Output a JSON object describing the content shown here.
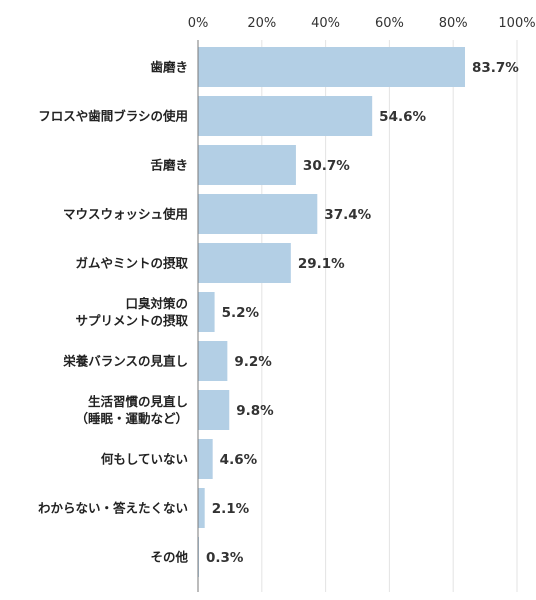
{
  "chart_data": {
    "type": "bar",
    "orientation": "horizontal",
    "x_ticks": [
      "0%",
      "20%",
      "40%",
      "60%",
      "80%",
      "100%"
    ],
    "xlim": [
      0,
      100
    ],
    "categories": [
      [
        "歯磨き"
      ],
      [
        "フロスや歯間ブラシの使用"
      ],
      [
        "舌磨き"
      ],
      [
        "マウスウォッシュ使用"
      ],
      [
        "ガムやミントの摂取"
      ],
      [
        "口臭対策の",
        "サプリメントの摂取"
      ],
      [
        "栄養バランスの見直し"
      ],
      [
        "生活習慣の見直し",
        "（睡眠・運動など）"
      ],
      [
        "何もしていない"
      ],
      [
        "わからない・答えたくない"
      ],
      [
        "その他"
      ]
    ],
    "values": [
      83.7,
      54.6,
      30.7,
      37.4,
      29.1,
      5.2,
      9.2,
      9.8,
      4.6,
      2.1,
      0.3
    ],
    "value_labels": [
      "83.7%",
      "54.6%",
      "30.7%",
      "37.4%",
      "29.1%",
      "5.2%",
      "9.2%",
      "9.8%",
      "4.6%",
      "2.1%",
      "0.3%"
    ],
    "grid": true,
    "colors": {
      "bar": "#b3cfe5",
      "grid": "#e3e3e3",
      "axis": "#7a7a7a"
    }
  }
}
